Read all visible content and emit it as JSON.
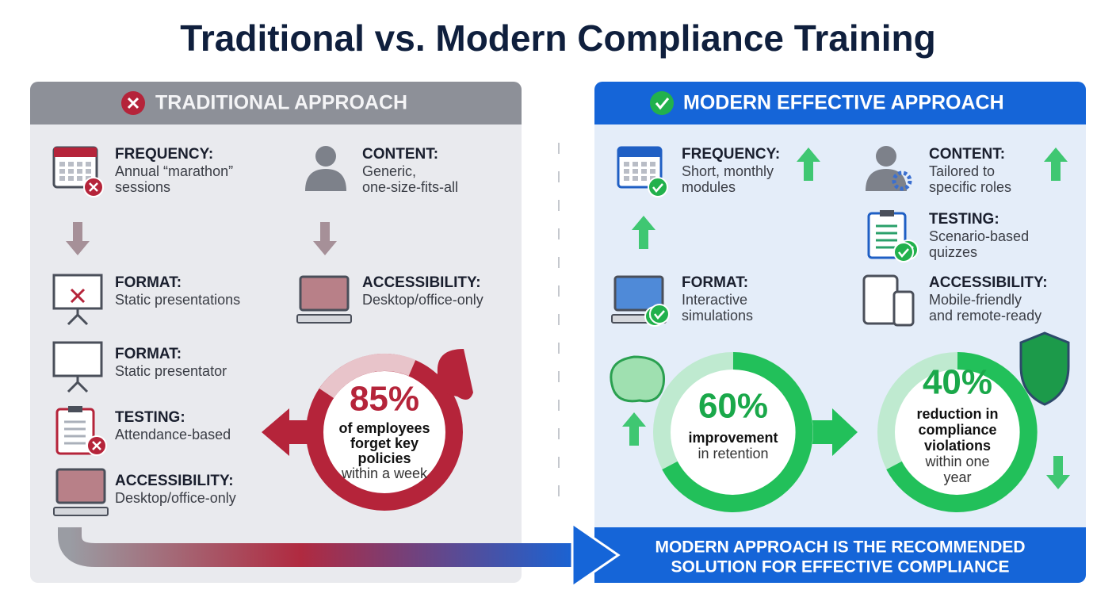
{
  "title": "Traditional vs. Modern Compliance Training",
  "traditional": {
    "header": "TRADITIONAL APPROACH",
    "items": [
      {
        "label": "FREQUENCY:",
        "lines": [
          "Annual “marathon”",
          "sessions"
        ]
      },
      {
        "label": "CONTENT:",
        "lines": [
          "Generic,",
          "one-size-fits-all"
        ]
      },
      {
        "label": "FORMAT:",
        "lines": [
          "Static presentations"
        ]
      },
      {
        "label": "ACCESSIBILITY:",
        "lines": [
          "Desktop/office-only"
        ]
      },
      {
        "label": "FORMAT:",
        "lines": [
          "Static presentator"
        ]
      },
      {
        "label": "TESTING:",
        "lines": [
          "Attendance-based"
        ]
      },
      {
        "label": "ACCESSIBILITY:",
        "lines": [
          "Desktop/office-only"
        ]
      }
    ],
    "stat": {
      "value": "85%",
      "lines": [
        "of employees",
        "forget key",
        "policies",
        "within a week"
      ]
    }
  },
  "modern": {
    "header": "MODERN EFFECTIVE APPROACH",
    "items": [
      {
        "label": "FREQUENCY:",
        "lines": [
          "Short, monthly",
          "modules"
        ]
      },
      {
        "label": "CONTENT:",
        "lines": [
          "Tailored to",
          "specific roles"
        ]
      },
      {
        "label": "TESTING:",
        "lines": [
          "Scenario-based",
          "quizzes"
        ]
      },
      {
        "label": "FORMAT:",
        "lines": [
          "Interactive",
          "simulations"
        ]
      },
      {
        "label": "ACCESSIBILITY:",
        "lines": [
          "Mobile-friendly",
          "and remote-ready"
        ]
      }
    ],
    "stats": [
      {
        "value": "60%",
        "lines": [
          "improvement",
          "in retention"
        ]
      },
      {
        "value": "40%",
        "lines": [
          "reduction in",
          "compliance",
          "violations",
          "within one",
          "year"
        ]
      }
    ]
  },
  "banner": {
    "lines": [
      "MODERN APPROACH IS THE RECOMMENDED",
      "SOLUTION FOR EFFECTIVE COMPLIANCE"
    ]
  }
}
